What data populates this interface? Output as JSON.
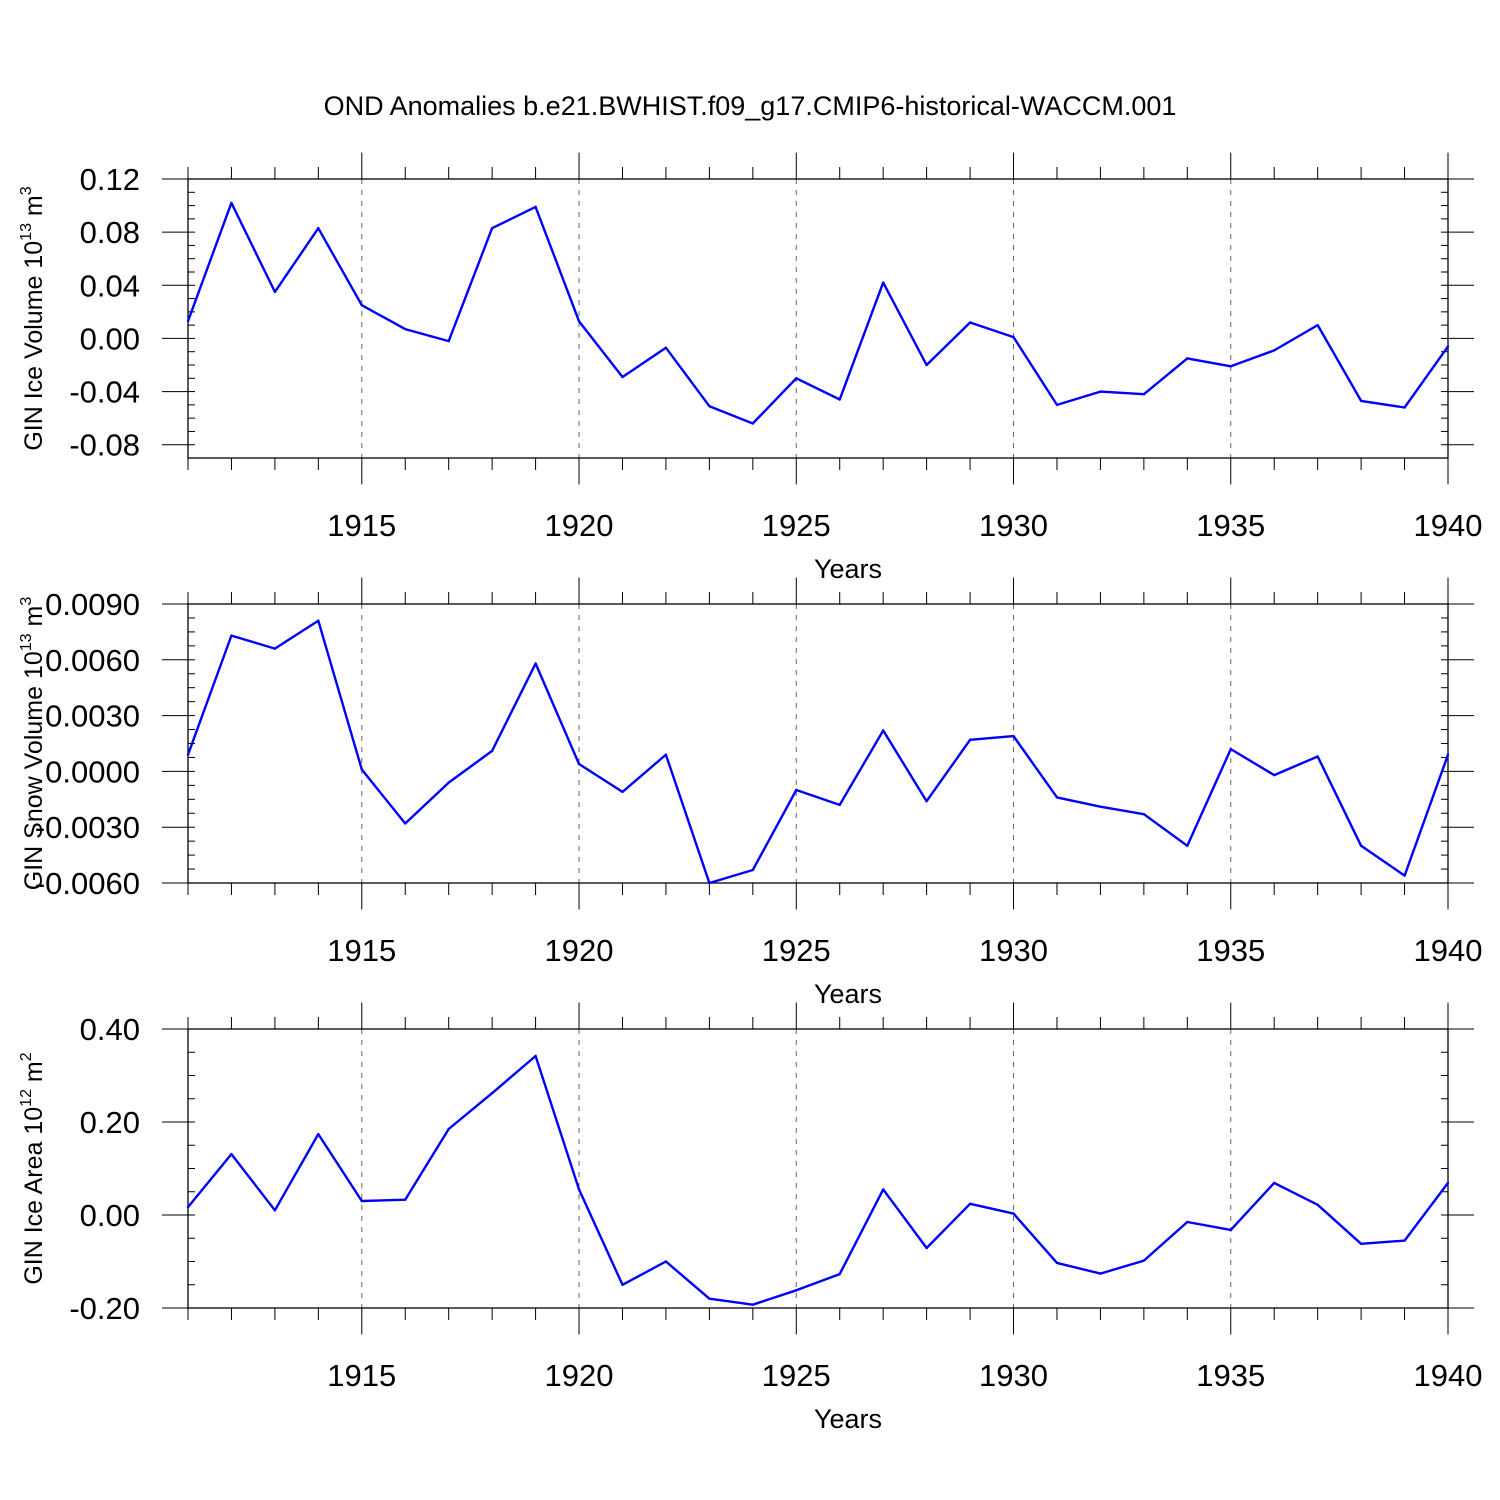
{
  "title": "OND Anomalies b.e21.BWHIST.f09_g17.CMIP6-historical-WACCM.001",
  "colors": {
    "line": "#0000ff",
    "axis": "#000000",
    "grid": "#666666"
  },
  "chart_data": [
    {
      "type": "line",
      "ylabel": "GIN Ice Volume 10",
      "ylabel_exp": "13",
      "ylabel_unit": " m",
      "ylabel_unit_exp": "3",
      "xlabel": "Years",
      "xlim": [
        1911,
        1940
      ],
      "ylim": [
        -0.09,
        0.12
      ],
      "yticks": [
        -0.08,
        -0.04,
        0.0,
        0.04,
        0.08,
        0.12
      ],
      "ytick_labels": [
        "-0.08",
        "-0.04",
        "0.00",
        "0.04",
        "0.08",
        "0.12"
      ],
      "xticks": [
        1915,
        1920,
        1925,
        1930,
        1935,
        1940
      ],
      "xtick_labels": [
        "1915",
        "1920",
        "1925",
        "1930",
        "1935",
        "1940"
      ],
      "grid": "vertical dashed at labeled years",
      "x": [
        1911,
        1912,
        1913,
        1914,
        1915,
        1916,
        1917,
        1918,
        1919,
        1920,
        1921,
        1922,
        1923,
        1924,
        1925,
        1926,
        1927,
        1928,
        1929,
        1930,
        1931,
        1932,
        1933,
        1934,
        1935,
        1936,
        1937,
        1938,
        1939,
        1940
      ],
      "values": [
        0.013,
        0.102,
        0.035,
        0.083,
        0.025,
        0.007,
        -0.002,
        0.083,
        0.099,
        0.013,
        -0.029,
        -0.007,
        -0.051,
        -0.064,
        -0.03,
        -0.046,
        0.042,
        -0.02,
        0.012,
        0.001,
        -0.05,
        -0.04,
        -0.042,
        -0.015,
        -0.021,
        -0.009,
        0.01,
        -0.047,
        -0.052,
        -0.006
      ]
    },
    {
      "type": "line",
      "ylabel": "GIN Snow Volume 10",
      "ylabel_exp": "13",
      "ylabel_unit": " m",
      "ylabel_unit_exp": "3",
      "xlabel": "Years",
      "xlim": [
        1911,
        1940
      ],
      "ylim": [
        -0.006,
        0.009
      ],
      "yticks": [
        -0.006,
        -0.003,
        0.0,
        0.003,
        0.006,
        0.009
      ],
      "ytick_labels": [
        "-0.0060",
        "-0.0030",
        "0.0000",
        "0.0030",
        "0.0060",
        "0.0090"
      ],
      "xticks": [
        1915,
        1920,
        1925,
        1930,
        1935,
        1940
      ],
      "xtick_labels": [
        "1915",
        "1920",
        "1925",
        "1930",
        "1935",
        "1940"
      ],
      "grid": "vertical dashed at labeled years",
      "x": [
        1911,
        1912,
        1913,
        1914,
        1915,
        1916,
        1917,
        1918,
        1919,
        1920,
        1921,
        1922,
        1923,
        1924,
        1925,
        1926,
        1927,
        1928,
        1929,
        1930,
        1931,
        1932,
        1933,
        1934,
        1935,
        1936,
        1937,
        1938,
        1939,
        1940
      ],
      "values": [
        0.0009,
        0.0073,
        0.0066,
        0.0081,
        0.0001,
        -0.0028,
        -0.0006,
        0.0011,
        0.0058,
        0.0004,
        -0.0011,
        0.0009,
        -0.006,
        -0.0053,
        -0.001,
        -0.0018,
        0.0022,
        -0.0016,
        0.0017,
        0.0019,
        -0.0014,
        -0.0019,
        -0.0023,
        -0.004,
        0.0012,
        -0.0002,
        0.0008,
        -0.004,
        -0.0056,
        0.0009
      ]
    },
    {
      "type": "line",
      "ylabel": "GIN Ice Area 10",
      "ylabel_exp": "12",
      "ylabel_unit": " m",
      "ylabel_unit_exp": "2",
      "xlabel": "Years",
      "xlim": [
        1911,
        1940
      ],
      "ylim": [
        -0.2,
        0.4
      ],
      "yticks": [
        -0.2,
        0.0,
        0.2,
        0.4
      ],
      "ytick_labels": [
        "-0.20",
        "0.00",
        "0.20",
        "0.40"
      ],
      "xticks": [
        1915,
        1920,
        1925,
        1930,
        1935,
        1940
      ],
      "xtick_labels": [
        "1915",
        "1920",
        "1925",
        "1930",
        "1935",
        "1940"
      ],
      "grid": "vertical dashed at labeled years",
      "x": [
        1911,
        1912,
        1913,
        1914,
        1915,
        1916,
        1917,
        1918,
        1919,
        1920,
        1921,
        1922,
        1923,
        1924,
        1925,
        1926,
        1927,
        1928,
        1929,
        1930,
        1931,
        1932,
        1933,
        1934,
        1935,
        1936,
        1937,
        1938,
        1939,
        1940
      ],
      "values": [
        0.017,
        0.131,
        0.01,
        0.174,
        0.03,
        0.033,
        0.185,
        0.262,
        0.342,
        0.055,
        -0.15,
        -0.1,
        -0.18,
        -0.193,
        -0.162,
        -0.127,
        0.055,
        -0.071,
        0.024,
        0.003,
        -0.103,
        -0.126,
        -0.098,
        -0.015,
        -0.032,
        0.069,
        0.022,
        -0.062,
        -0.055,
        0.069
      ]
    }
  ]
}
